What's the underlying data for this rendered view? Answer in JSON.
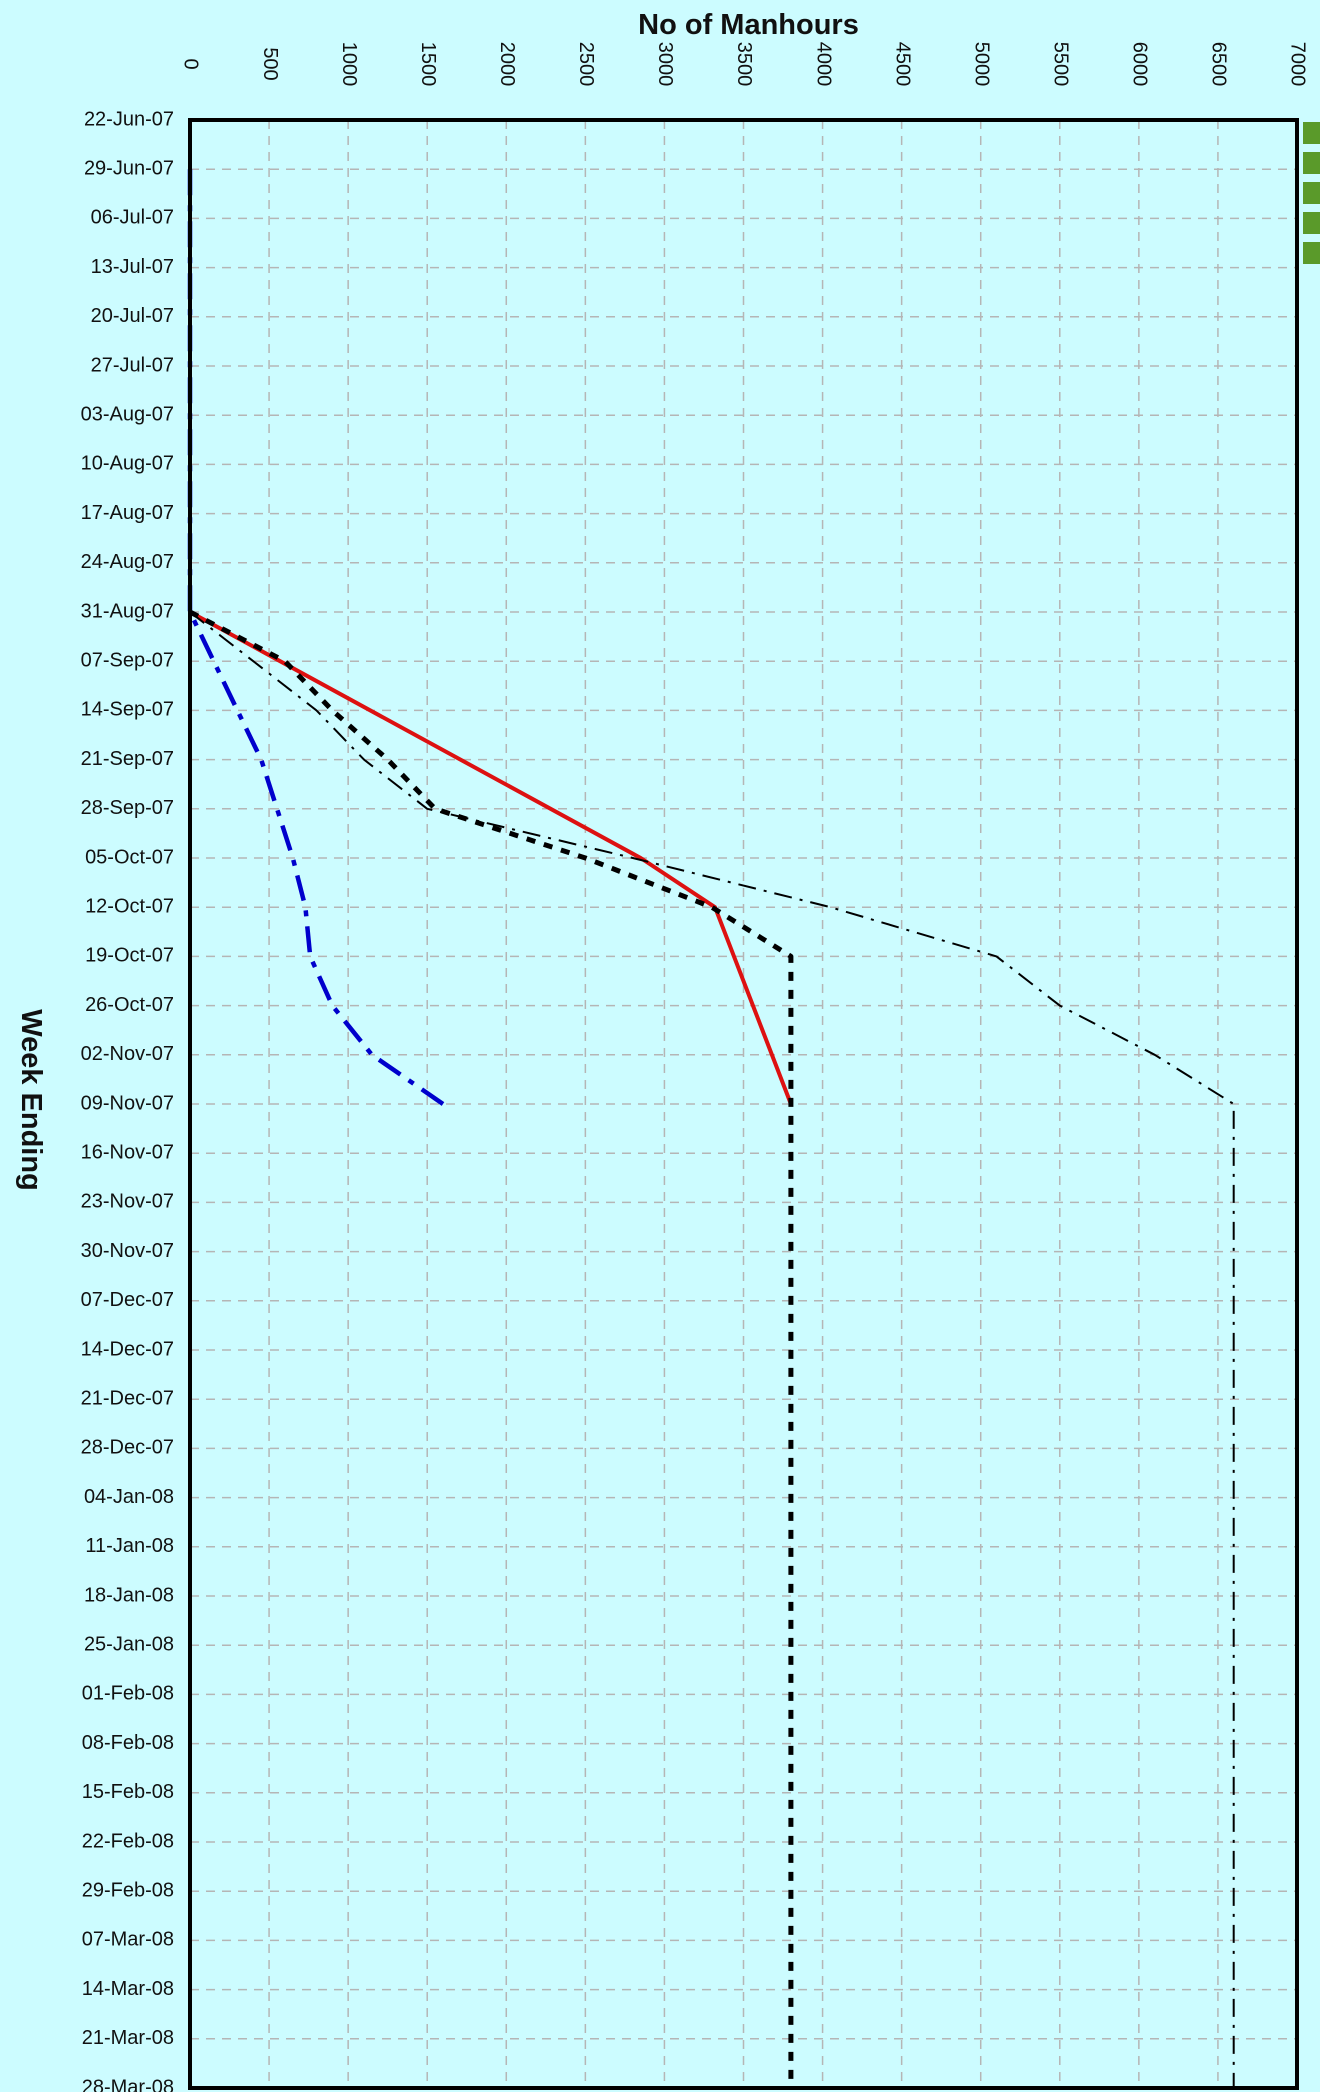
{
  "chart_data": {
    "type": "line",
    "title": "",
    "xlabel": "No of Manhours",
    "ylabel": "Week Ending",
    "xlim": [
      0,
      7000
    ],
    "x_ticks": [
      "0",
      "500",
      "1000",
      "1500",
      "2000",
      "2500",
      "3000",
      "3500",
      "4000",
      "4500",
      "5000",
      "5500",
      "6000",
      "6500",
      "7000"
    ],
    "categories": [
      "22-Jun-07",
      "29-Jun-07",
      "06-Jul-07",
      "13-Jul-07",
      "20-Jul-07",
      "27-Jul-07",
      "03-Aug-07",
      "10-Aug-07",
      "17-Aug-07",
      "24-Aug-07",
      "31-Aug-07",
      "07-Sep-07",
      "14-Sep-07",
      "21-Sep-07",
      "28-Sep-07",
      "05-Oct-07",
      "12-Oct-07",
      "19-Oct-07",
      "26-Oct-07",
      "02-Nov-07",
      "09-Nov-07",
      "16-Nov-07",
      "23-Nov-07",
      "30-Nov-07",
      "07-Dec-07",
      "14-Dec-07",
      "21-Dec-07",
      "28-Dec-07",
      "04-Jan-08",
      "11-Jan-08",
      "18-Jan-08",
      "25-Jan-08",
      "01-Feb-08",
      "08-Feb-08",
      "15-Feb-08",
      "22-Feb-08",
      "29-Feb-08",
      "07-Mar-08",
      "14-Mar-08",
      "21-Mar-08",
      "28-Mar-08"
    ],
    "grid": true,
    "series": [
      {
        "color": "#0000cc",
        "line_style": "dash-dot",
        "points": [
          [
            "29-Jun-07",
            0
          ],
          [
            "31-Aug-07",
            0
          ],
          [
            "07-Sep-07",
            150
          ],
          [
            "14-Sep-07",
            300
          ],
          [
            "21-Sep-07",
            450
          ],
          [
            "28-Sep-07",
            550
          ],
          [
            "05-Oct-07",
            650
          ],
          [
            "12-Oct-07",
            730
          ],
          [
            "19-Oct-07",
            760
          ],
          [
            "26-Oct-07",
            900
          ],
          [
            "02-Nov-07",
            1150
          ],
          [
            "09-Nov-07",
            1600
          ]
        ]
      },
      {
        "color": "#dd1111",
        "line_style": "solid",
        "points": [
          [
            "31-Aug-07",
            0
          ],
          [
            "05-Oct-07",
            2850
          ],
          [
            "12-Oct-07",
            3320
          ],
          [
            "09-Nov-07",
            3800
          ]
        ]
      },
      {
        "color": "#000000",
        "line_style": "dotted",
        "points": [
          [
            "31-Aug-07",
            0
          ],
          [
            "07-Sep-07",
            600
          ],
          [
            "14-Sep-07",
            900
          ],
          [
            "21-Sep-07",
            1250
          ],
          [
            "28-Sep-07",
            1550
          ],
          [
            "05-Oct-07",
            2500
          ],
          [
            "12-Oct-07",
            3300
          ],
          [
            "19-Oct-07",
            3800
          ],
          [
            "28-Mar-08",
            3800
          ]
        ]
      },
      {
        "color": "#000000",
        "line_style": "dash-dot-thin",
        "points": [
          [
            "31-Aug-07",
            0
          ],
          [
            "07-Sep-07",
            400
          ],
          [
            "14-Sep-07",
            800
          ],
          [
            "21-Sep-07",
            1100
          ],
          [
            "28-Sep-07",
            1500
          ],
          [
            "05-Oct-07",
            2800
          ],
          [
            "12-Oct-07",
            4050
          ],
          [
            "19-Oct-07",
            5100
          ],
          [
            "26-Oct-07",
            5500
          ],
          [
            "02-Nov-07",
            6100
          ],
          [
            "09-Nov-07",
            6600
          ],
          [
            "28-Mar-08",
            6600
          ]
        ]
      }
    ]
  }
}
